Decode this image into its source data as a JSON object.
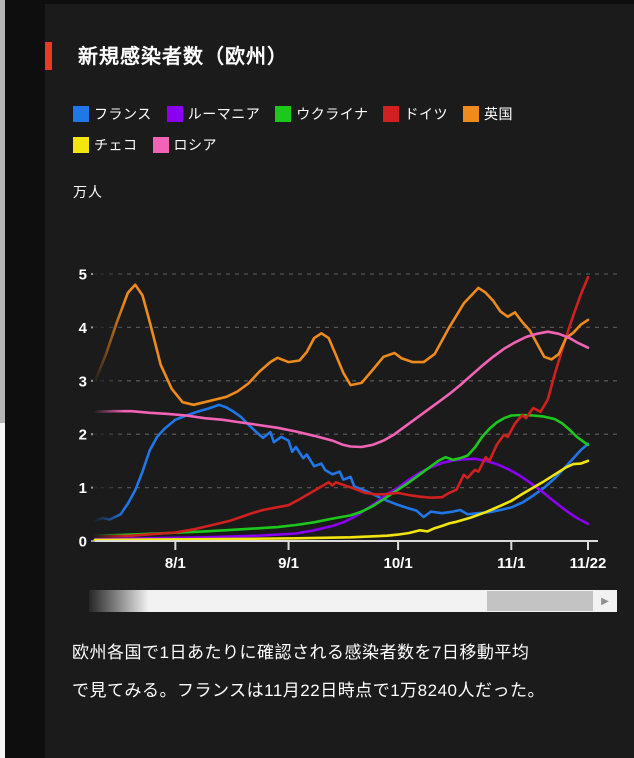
{
  "page": {
    "background": "#0e0e0e",
    "panel_background": "#1b1b1b"
  },
  "header": {
    "title": "新規感染者数（欧州）",
    "accent_color": "#e83c1e"
  },
  "legend_rows": [
    [
      0,
      1,
      2,
      3,
      4
    ],
    [
      5,
      6
    ]
  ],
  "chart_data": {
    "type": "line",
    "title": "新規感染者数（欧州）",
    "unit_label": "万人",
    "ylabel": "万人",
    "ylim": [
      0,
      5.2
    ],
    "grid": "dashed horizontal",
    "legend_position": "top",
    "y_axis": {
      "ticks": [
        0,
        1,
        2,
        3,
        4,
        5
      ]
    },
    "x_axis": {
      "start_day": 0,
      "end_day": 135,
      "ticks": [
        {
          "label": "8/1",
          "day": 22
        },
        {
          "label": "9/1",
          "day": 53
        },
        {
          "label": "10/1",
          "day": 83
        },
        {
          "label": "11/1",
          "day": 114
        },
        {
          "label": "11/22",
          "day": 135
        }
      ]
    },
    "series": [
      {
        "name": "フランス",
        "color": "#2176e8",
        "points": [
          [
            0,
            0.38
          ],
          [
            2,
            0.43
          ],
          [
            4,
            0.4
          ],
          [
            7,
            0.5
          ],
          [
            9,
            0.7
          ],
          [
            11,
            0.95
          ],
          [
            13,
            1.3
          ],
          [
            15,
            1.7
          ],
          [
            17,
            1.95
          ],
          [
            19,
            2.1
          ],
          [
            22,
            2.27
          ],
          [
            25,
            2.35
          ],
          [
            28,
            2.42
          ],
          [
            31,
            2.48
          ],
          [
            34,
            2.55
          ],
          [
            36,
            2.5
          ],
          [
            38,
            2.42
          ],
          [
            40,
            2.32
          ],
          [
            42,
            2.18
          ],
          [
            44,
            2.05
          ],
          [
            46,
            1.93
          ],
          [
            48,
            2.04
          ],
          [
            49,
            1.85
          ],
          [
            51,
            1.95
          ],
          [
            53,
            1.88
          ],
          [
            54,
            1.67
          ],
          [
            55,
            1.76
          ],
          [
            57,
            1.55
          ],
          [
            58,
            1.62
          ],
          [
            60,
            1.4
          ],
          [
            62,
            1.45
          ],
          [
            63,
            1.33
          ],
          [
            65,
            1.25
          ],
          [
            67,
            1.3
          ],
          [
            68,
            1.15
          ],
          [
            70,
            1.2
          ],
          [
            71,
            1.02
          ],
          [
            73,
            0.97
          ],
          [
            76,
            0.88
          ],
          [
            79,
            0.78
          ],
          [
            82,
            0.7
          ],
          [
            85,
            0.63
          ],
          [
            88,
            0.57
          ],
          [
            90,
            0.45
          ],
          [
            92,
            0.55
          ],
          [
            95,
            0.52
          ],
          [
            98,
            0.55
          ],
          [
            100,
            0.58
          ],
          [
            102,
            0.5
          ],
          [
            105,
            0.52
          ],
          [
            108,
            0.54
          ],
          [
            111,
            0.58
          ],
          [
            114,
            0.63
          ],
          [
            117,
            0.72
          ],
          [
            120,
            0.85
          ],
          [
            123,
            1.0
          ],
          [
            126,
            1.18
          ],
          [
            129,
            1.4
          ],
          [
            131,
            1.55
          ],
          [
            133,
            1.7
          ],
          [
            135,
            1.82
          ]
        ]
      },
      {
        "name": "ルーマニア",
        "color": "#8b00f0",
        "points": [
          [
            0,
            0.04
          ],
          [
            15,
            0.05
          ],
          [
            30,
            0.07
          ],
          [
            45,
            0.1
          ],
          [
            55,
            0.14
          ],
          [
            60,
            0.2
          ],
          [
            65,
            0.28
          ],
          [
            68,
            0.35
          ],
          [
            71,
            0.45
          ],
          [
            74,
            0.58
          ],
          [
            77,
            0.72
          ],
          [
            80,
            0.88
          ],
          [
            83,
            1.0
          ],
          [
            86,
            1.15
          ],
          [
            89,
            1.28
          ],
          [
            92,
            1.38
          ],
          [
            95,
            1.46
          ],
          [
            98,
            1.51
          ],
          [
            101,
            1.53
          ],
          [
            104,
            1.54
          ],
          [
            107,
            1.5
          ],
          [
            110,
            1.44
          ],
          [
            113,
            1.35
          ],
          [
            116,
            1.24
          ],
          [
            119,
            1.1
          ],
          [
            122,
            0.95
          ],
          [
            125,
            0.78
          ],
          [
            128,
            0.62
          ],
          [
            130,
            0.52
          ],
          [
            132,
            0.43
          ],
          [
            135,
            0.32
          ]
        ]
      },
      {
        "name": "ウクライナ",
        "color": "#1dc81d",
        "points": [
          [
            0,
            0.1
          ],
          [
            10,
            0.12
          ],
          [
            20,
            0.15
          ],
          [
            30,
            0.18
          ],
          [
            40,
            0.22
          ],
          [
            50,
            0.26
          ],
          [
            55,
            0.3
          ],
          [
            60,
            0.35
          ],
          [
            65,
            0.42
          ],
          [
            70,
            0.48
          ],
          [
            73,
            0.55
          ],
          [
            76,
            0.65
          ],
          [
            79,
            0.78
          ],
          [
            82,
            0.92
          ],
          [
            85,
            1.05
          ],
          [
            88,
            1.2
          ],
          [
            91,
            1.35
          ],
          [
            94,
            1.5
          ],
          [
            96,
            1.57
          ],
          [
            98,
            1.52
          ],
          [
            100,
            1.55
          ],
          [
            102,
            1.6
          ],
          [
            104,
            1.75
          ],
          [
            106,
            1.95
          ],
          [
            108,
            2.1
          ],
          [
            110,
            2.22
          ],
          [
            112,
            2.3
          ],
          [
            114,
            2.35
          ],
          [
            117,
            2.36
          ],
          [
            120,
            2.35
          ],
          [
            123,
            2.33
          ],
          [
            126,
            2.28
          ],
          [
            128,
            2.2
          ],
          [
            130,
            2.08
          ],
          [
            132,
            1.95
          ],
          [
            135,
            1.8
          ]
        ]
      },
      {
        "name": "ドイツ",
        "color": "#d0201f",
        "points": [
          [
            0,
            0.08
          ],
          [
            10,
            0.1
          ],
          [
            22,
            0.16
          ],
          [
            27,
            0.22
          ],
          [
            31,
            0.28
          ],
          [
            34,
            0.33
          ],
          [
            37,
            0.38
          ],
          [
            40,
            0.45
          ],
          [
            43,
            0.52
          ],
          [
            46,
            0.58
          ],
          [
            49,
            0.62
          ],
          [
            53,
            0.67
          ],
          [
            56,
            0.78
          ],
          [
            59,
            0.9
          ],
          [
            62,
            1.02
          ],
          [
            64,
            1.1
          ],
          [
            65,
            1.04
          ],
          [
            66,
            1.1
          ],
          [
            68,
            1.05
          ],
          [
            71,
            0.98
          ],
          [
            74,
            0.9
          ],
          [
            77,
            0.87
          ],
          [
            80,
            0.88
          ],
          [
            83,
            0.9
          ],
          [
            86,
            0.86
          ],
          [
            89,
            0.83
          ],
          [
            92,
            0.81
          ],
          [
            95,
            0.82
          ],
          [
            97,
            0.9
          ],
          [
            99,
            0.96
          ],
          [
            101,
            1.24
          ],
          [
            102,
            1.18
          ],
          [
            104,
            1.33
          ],
          [
            105,
            1.3
          ],
          [
            107,
            1.57
          ],
          [
            108,
            1.5
          ],
          [
            110,
            1.8
          ],
          [
            112,
            1.99
          ],
          [
            113,
            1.95
          ],
          [
            115,
            2.2
          ],
          [
            117,
            2.36
          ],
          [
            118,
            2.3
          ],
          [
            120,
            2.49
          ],
          [
            122,
            2.42
          ],
          [
            124,
            2.65
          ],
          [
            126,
            3.15
          ],
          [
            129,
            3.82
          ],
          [
            131,
            4.23
          ],
          [
            133,
            4.61
          ],
          [
            135,
            4.94
          ]
        ]
      },
      {
        "name": "英国",
        "color": "#ef8a1c",
        "points": [
          [
            0,
            3.0
          ],
          [
            3,
            3.5
          ],
          [
            6,
            4.1
          ],
          [
            9,
            4.65
          ],
          [
            11,
            4.8
          ],
          [
            13,
            4.6
          ],
          [
            15,
            4.1
          ],
          [
            18,
            3.3
          ],
          [
            21,
            2.85
          ],
          [
            24,
            2.6
          ],
          [
            27,
            2.55
          ],
          [
            30,
            2.6
          ],
          [
            33,
            2.65
          ],
          [
            36,
            2.7
          ],
          [
            39,
            2.8
          ],
          [
            42,
            2.95
          ],
          [
            45,
            3.17
          ],
          [
            48,
            3.35
          ],
          [
            50,
            3.43
          ],
          [
            53,
            3.35
          ],
          [
            56,
            3.38
          ],
          [
            58,
            3.54
          ],
          [
            60,
            3.8
          ],
          [
            62,
            3.89
          ],
          [
            64,
            3.8
          ],
          [
            66,
            3.48
          ],
          [
            68,
            3.15
          ],
          [
            70,
            2.92
          ],
          [
            73,
            2.96
          ],
          [
            76,
            3.2
          ],
          [
            79,
            3.45
          ],
          [
            82,
            3.52
          ],
          [
            84,
            3.42
          ],
          [
            87,
            3.35
          ],
          [
            90,
            3.35
          ],
          [
            93,
            3.5
          ],
          [
            97,
            4.0
          ],
          [
            101,
            4.45
          ],
          [
            105,
            4.74
          ],
          [
            107,
            4.65
          ],
          [
            109,
            4.5
          ],
          [
            111,
            4.3
          ],
          [
            113,
            4.2
          ],
          [
            115,
            4.28
          ],
          [
            117,
            4.1
          ],
          [
            119,
            3.95
          ],
          [
            121,
            3.7
          ],
          [
            123,
            3.45
          ],
          [
            125,
            3.4
          ],
          [
            127,
            3.5
          ],
          [
            129,
            3.8
          ],
          [
            131,
            3.9
          ],
          [
            133,
            4.05
          ],
          [
            135,
            4.14
          ]
        ]
      },
      {
        "name": "チェコ",
        "color": "#f3e60e",
        "points": [
          [
            0,
            0.02
          ],
          [
            20,
            0.03
          ],
          [
            40,
            0.04
          ],
          [
            55,
            0.05
          ],
          [
            70,
            0.07
          ],
          [
            80,
            0.1
          ],
          [
            83,
            0.12
          ],
          [
            86,
            0.15
          ],
          [
            89,
            0.2
          ],
          [
            91,
            0.18
          ],
          [
            93,
            0.24
          ],
          [
            95,
            0.28
          ],
          [
            97,
            0.33
          ],
          [
            99,
            0.36
          ],
          [
            101,
            0.4
          ],
          [
            103,
            0.44
          ],
          [
            105,
            0.49
          ],
          [
            107,
            0.54
          ],
          [
            109,
            0.6
          ],
          [
            111,
            0.66
          ],
          [
            114,
            0.75
          ],
          [
            117,
            0.88
          ],
          [
            120,
            1.0
          ],
          [
            123,
            1.12
          ],
          [
            126,
            1.25
          ],
          [
            129,
            1.38
          ],
          [
            131,
            1.44
          ],
          [
            133,
            1.45
          ],
          [
            135,
            1.5
          ]
        ]
      },
      {
        "name": "ロシア",
        "color": "#f263b5",
        "points": [
          [
            0,
            2.42
          ],
          [
            5,
            2.43
          ],
          [
            10,
            2.43
          ],
          [
            15,
            2.4
          ],
          [
            20,
            2.38
          ],
          [
            25,
            2.35
          ],
          [
            30,
            2.3
          ],
          [
            35,
            2.27
          ],
          [
            40,
            2.22
          ],
          [
            45,
            2.17
          ],
          [
            50,
            2.12
          ],
          [
            55,
            2.05
          ],
          [
            60,
            1.97
          ],
          [
            65,
            1.88
          ],
          [
            68,
            1.8
          ],
          [
            70,
            1.77
          ],
          [
            73,
            1.76
          ],
          [
            76,
            1.8
          ],
          [
            79,
            1.88
          ],
          [
            82,
            2.0
          ],
          [
            85,
            2.15
          ],
          [
            88,
            2.3
          ],
          [
            91,
            2.45
          ],
          [
            94,
            2.6
          ],
          [
            97,
            2.75
          ],
          [
            100,
            2.92
          ],
          [
            103,
            3.1
          ],
          [
            106,
            3.28
          ],
          [
            109,
            3.45
          ],
          [
            112,
            3.6
          ],
          [
            115,
            3.72
          ],
          [
            118,
            3.82
          ],
          [
            121,
            3.88
          ],
          [
            124,
            3.92
          ],
          [
            127,
            3.88
          ],
          [
            130,
            3.8
          ],
          [
            132,
            3.72
          ],
          [
            135,
            3.62
          ]
        ]
      }
    ]
  },
  "scrollbar": {
    "arrow": "▶"
  },
  "description": {
    "lines": [
      "欧州各国で1日あたりに確認される感染者数を7日移動平均",
      "で見てみる。フランスは11月22日時点で1万8240人だった。"
    ]
  }
}
